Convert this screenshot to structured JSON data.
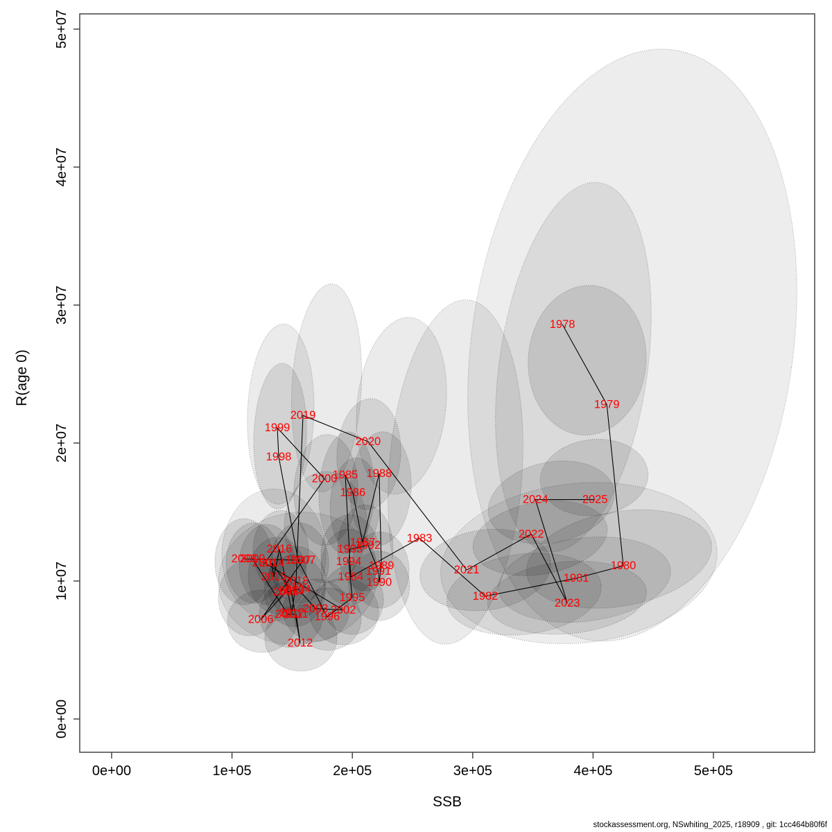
{
  "figure": {
    "background": "#ffffff"
  },
  "caption": {
    "text": "stockassessment.org, NSwhiting_2025, r18909 , git: 1cc464b80f6f",
    "color": "#000000"
  },
  "chart_data": {
    "type": "scatter",
    "title": "",
    "xlabel": "SSB",
    "ylabel": "R(age 0)",
    "xlim": [
      0,
      585000
    ],
    "ylim": [
      0,
      52000000
    ],
    "grid": false,
    "legend": "none",
    "label_color": "#ff0000",
    "line_color": "#000000",
    "axis_color": "#444444",
    "ellipse_stroke": "rgba(0,0,0,0.35)",
    "x_ticks": [
      {
        "value": 0,
        "label": "0e+00"
      },
      {
        "value": 100000,
        "label": "1e+05"
      },
      {
        "value": 200000,
        "label": "2e+05"
      },
      {
        "value": 300000,
        "label": "3e+05"
      },
      {
        "value": 400000,
        "label": "4e+05"
      },
      {
        "value": 500000,
        "label": "5e+05"
      }
    ],
    "y_ticks": [
      {
        "value": 0,
        "label": "0e+00"
      },
      {
        "value": 10000000,
        "label": "1e+07"
      },
      {
        "value": 20000000,
        "label": "2e+07"
      },
      {
        "value": 30000000,
        "label": "3e+07"
      },
      {
        "value": 40000000,
        "label": "4e+07"
      },
      {
        "value": 50000000,
        "label": "5e+07"
      }
    ],
    "series": [
      {
        "year": "1978",
        "ssb": 374500,
        "recruitment": 28600000
      },
      {
        "year": "1979",
        "ssb": 411400,
        "recruitment": 22800000
      },
      {
        "year": "1980",
        "ssb": 425100,
        "recruitment": 11100000
      },
      {
        "year": "1981",
        "ssb": 386000,
        "recruitment": 10200000
      },
      {
        "year": "1982",
        "ssb": 310500,
        "recruitment": 8900000
      },
      {
        "year": "1983",
        "ssb": 255800,
        "recruitment": 13100000
      },
      {
        "year": "1984",
        "ssb": 198700,
        "recruitment": 10300000
      },
      {
        "year": "1985",
        "ssb": 194100,
        "recruitment": 17700000
      },
      {
        "year": "1986",
        "ssb": 200400,
        "recruitment": 16400000
      },
      {
        "year": "1987",
        "ssb": 208500,
        "recruitment": 12800000
      },
      {
        "year": "1988",
        "ssb": 222300,
        "recruitment": 17800000
      },
      {
        "year": "1989",
        "ssb": 224100,
        "recruitment": 11100000
      },
      {
        "year": "1990",
        "ssb": 222300,
        "recruitment": 9900000
      },
      {
        "year": "1991",
        "ssb": 221700,
        "recruitment": 10700000
      },
      {
        "year": "1992",
        "ssb": 213100,
        "recruitment": 12600000
      },
      {
        "year": "1993",
        "ssb": 198100,
        "recruitment": 12300000
      },
      {
        "year": "1994",
        "ssb": 197000,
        "recruitment": 11400000
      },
      {
        "year": "1995",
        "ssb": 199900,
        "recruitment": 8800000
      },
      {
        "year": "1996",
        "ssb": 179100,
        "recruitment": 7400000
      },
      {
        "year": "1997",
        "ssb": 155000,
        "recruitment": 11500000
      },
      {
        "year": "1998",
        "ssb": 138800,
        "recruitment": 19000000
      },
      {
        "year": "1999",
        "ssb": 137700,
        "recruitment": 21100000
      },
      {
        "year": "2000",
        "ssb": 176900,
        "recruitment": 17400000
      },
      {
        "year": "2001",
        "ssb": 127300,
        "recruitment": 11300000
      },
      {
        "year": "2002",
        "ssb": 192400,
        "recruitment": 7900000
      },
      {
        "year": "2003",
        "ssb": 169400,
        "recruitment": 8000000
      },
      {
        "year": "2004",
        "ssb": 155000,
        "recruitment": 9400000
      },
      {
        "year": "2005",
        "ssb": 144600,
        "recruitment": 9200000
      },
      {
        "year": "2006",
        "ssb": 123900,
        "recruitment": 7200000
      },
      {
        "year": "2007",
        "ssb": 159000,
        "recruitment": 11500000
      },
      {
        "year": "2008",
        "ssb": 110000,
        "recruitment": 11600000
      },
      {
        "year": "2009",
        "ssb": 117000,
        "recruitment": 11600000
      },
      {
        "year": "2010",
        "ssb": 146300,
        "recruitment": 7600000
      },
      {
        "year": "2011",
        "ssb": 153200,
        "recruitment": 7600000
      },
      {
        "year": "2012",
        "ssb": 156700,
        "recruitment": 5500000
      },
      {
        "year": "2013",
        "ssb": 149200,
        "recruitment": 9300000
      },
      {
        "year": "2014",
        "ssb": 133100,
        "recruitment": 11300000
      },
      {
        "year": "2015",
        "ssb": 134800,
        "recruitment": 10300000
      },
      {
        "year": "2016",
        "ssb": 139400,
        "recruitment": 12300000
      },
      {
        "year": "2017",
        "ssb": 149800,
        "recruitment": 7700000
      },
      {
        "year": "2018",
        "ssb": 153200,
        "recruitment": 10000000
      },
      {
        "year": "2019",
        "ssb": 159000,
        "recruitment": 22000000
      },
      {
        "year": "2020",
        "ssb": 213100,
        "recruitment": 20100000
      },
      {
        "year": "2021",
        "ssb": 295000,
        "recruitment": 10800000
      },
      {
        "year": "2022",
        "ssb": 348600,
        "recruitment": 13400000
      },
      {
        "year": "2023",
        "ssb": 378600,
        "recruitment": 8400000
      },
      {
        "year": "2024",
        "ssb": 352100,
        "recruitment": 15900000
      },
      {
        "year": "2025",
        "ssb": 401600,
        "recruitment": 15900000
      }
    ],
    "uncertainty_ellipses": [
      {
        "ssb": 432600,
        "r": 27100000,
        "ssb_radius": 133600,
        "r_radius": 21600000,
        "rot": 8,
        "alpha": 0.07
      },
      {
        "ssb": 383600,
        "r": 25500000,
        "ssb_radius": 61600,
        "r_radius": 13500000,
        "rot": 8,
        "alpha": 0.08
      },
      {
        "ssb": 395100,
        "r": 26000000,
        "ssb_radius": 49000,
        "r_radius": 5430000,
        "rot": 4,
        "alpha": 0.1
      },
      {
        "ssb": 400900,
        "r": 17500000,
        "ssb_radius": 44900,
        "r_radius": 2760000,
        "rot": -6,
        "alpha": 0.1
      },
      {
        "ssb": 388200,
        "r": 11300000,
        "ssb_radius": 115200,
        "r_radius": 5780000,
        "rot": -6,
        "alpha": 0.07
      },
      {
        "ssb": 421600,
        "r": 11600000,
        "ssb_radius": 77800,
        "r_radius": 3420000,
        "rot": -10,
        "alpha": 0.09
      },
      {
        "ssb": 392800,
        "r": 10100000,
        "ssb_radius": 72000,
        "r_radius": 3020000,
        "rot": -7,
        "alpha": 0.09
      },
      {
        "ssb": 378400,
        "r": 8790000,
        "ssb_radius": 66200,
        "r_radius": 2610000,
        "rot": -5,
        "alpha": 0.09
      },
      {
        "ssb": 342700,
        "r": 9050000,
        "ssb_radius": 64500,
        "r_radius": 2910000,
        "rot": -7,
        "alpha": 0.09
      },
      {
        "ssb": 356000,
        "r": 13100000,
        "ssb_radius": 56400,
        "r_radius": 2610000,
        "rot": -10,
        "alpha": 0.1
      },
      {
        "ssb": 365200,
        "r": 15700000,
        "ssb_radius": 53000,
        "r_radius": 2910000,
        "rot": -12,
        "alpha": 0.1
      },
      {
        "ssb": 310500,
        "r": 10800000,
        "ssb_radius": 54700,
        "r_radius": 2910000,
        "rot": -8,
        "alpha": 0.1
      },
      {
        "ssb": 285700,
        "r": 17900000,
        "ssb_radius": 55300,
        "r_radius": 12500000,
        "rot": 4,
        "alpha": 0.08
      },
      {
        "ssb": 178600,
        "r": 24000000,
        "ssb_radius": 28800,
        "r_radius": 7540000,
        "rot": 3,
        "alpha": 0.08
      },
      {
        "ssb": 240800,
        "r": 22700000,
        "ssb_radius": 36900,
        "r_radius": 6430000,
        "rot": 6,
        "alpha": 0.08
      },
      {
        "ssb": 213700,
        "r": 19200000,
        "ssb_radius": 26500,
        "r_radius": 4020000,
        "rot": 3,
        "alpha": 0.1
      },
      {
        "ssb": 140500,
        "r": 22100000,
        "ssb_radius": 27600,
        "r_radius": 6530000,
        "rot": 2,
        "alpha": 0.08
      },
      {
        "ssb": 140000,
        "r": 20500000,
        "ssb_radius": 21900,
        "r_radius": 5280000,
        "rot": 2,
        "alpha": 0.1
      },
      {
        "ssb": 195300,
        "r": 16400000,
        "ssb_radius": 23000,
        "r_radius": 4420000,
        "rot": 2,
        "alpha": 0.11
      },
      {
        "ssb": 223500,
        "r": 16700000,
        "ssb_radius": 25300,
        "r_radius": 4120000,
        "rot": 3,
        "alpha": 0.11
      },
      {
        "ssb": 178000,
        "r": 16600000,
        "ssb_radius": 26500,
        "r_radius": 4020000,
        "rot": 2,
        "alpha": 0.1
      },
      {
        "ssb": 202200,
        "r": 15500000,
        "ssb_radius": 20700,
        "r_radius": 3420000,
        "rot": 2,
        "alpha": 0.11
      },
      {
        "ssb": 210800,
        "r": 12400000,
        "ssb_radius": 23000,
        "r_radius": 3120000,
        "rot": 0,
        "alpha": 0.11
      },
      {
        "ssb": 222900,
        "r": 10800000,
        "ssb_radius": 24200,
        "r_radius": 2760000,
        "rot": 0,
        "alpha": 0.11
      },
      {
        "ssb": 222300,
        "r": 9650000,
        "ssb_radius": 25300,
        "r_radius": 2510000,
        "rot": 0,
        "alpha": 0.11
      },
      {
        "ssb": 198100,
        "r": 11900000,
        "ssb_radius": 24200,
        "r_radius": 2910000,
        "rot": 0,
        "alpha": 0.11
      },
      {
        "ssb": 197000,
        "r": 11000000,
        "ssb_radius": 23000,
        "r_radius": 2760000,
        "rot": 0,
        "alpha": 0.11
      },
      {
        "ssb": 199900,
        "r": 8640000,
        "ssb_radius": 25900,
        "r_radius": 2510000,
        "rot": 0,
        "alpha": 0.11
      },
      {
        "ssb": 179700,
        "r": 7240000,
        "ssb_radius": 27600,
        "r_radius": 2260000,
        "rot": 0,
        "alpha": 0.11
      },
      {
        "ssb": 193000,
        "r": 7790000,
        "ssb_radius": 28800,
        "r_radius": 2410000,
        "rot": 0,
        "alpha": 0.11
      },
      {
        "ssb": 169900,
        "r": 7890000,
        "ssb_radius": 27600,
        "r_radius": 2260000,
        "rot": 0,
        "alpha": 0.11
      },
      {
        "ssb": 154900,
        "r": 10200000,
        "ssb_radius": 66200,
        "r_radius": 4770000,
        "rot": -8,
        "alpha": 0.07
      },
      {
        "ssb": 134800,
        "r": 11900000,
        "ssb_radius": 43200,
        "r_radius": 4770000,
        "rot": 0,
        "alpha": 0.08
      },
      {
        "ssb": 110000,
        "r": 11400000,
        "ssb_radius": 24200,
        "r_radius": 3120000,
        "rot": 0,
        "alpha": 0.11
      },
      {
        "ssb": 118100,
        "r": 11300000,
        "ssb_radius": 23000,
        "r_radius": 2910000,
        "rot": 0,
        "alpha": 0.11
      },
      {
        "ssb": 129000,
        "r": 11200000,
        "ssb_radius": 23000,
        "r_radius": 2910000,
        "rot": 0,
        "alpha": 0.11
      },
      {
        "ssb": 137700,
        "r": 10400000,
        "ssb_radius": 24200,
        "r_radius": 2760000,
        "rot": 0,
        "alpha": 0.11
      },
      {
        "ssb": 140500,
        "r": 12200000,
        "ssb_radius": 23000,
        "r_radius": 2910000,
        "rot": 0,
        "alpha": 0.11
      },
      {
        "ssb": 156100,
        "r": 11300000,
        "ssb_radius": 24200,
        "r_radius": 2910000,
        "rot": 0,
        "alpha": 0.11
      },
      {
        "ssb": 152100,
        "r": 9300000,
        "ssb_radius": 25300,
        "r_radius": 2610000,
        "rot": 0,
        "alpha": 0.11
      },
      {
        "ssb": 153800,
        "r": 9900000,
        "ssb_radius": 24200,
        "r_radius": 2610000,
        "rot": 0,
        "alpha": 0.11
      },
      {
        "ssb": 149200,
        "r": 7590000,
        "ssb_radius": 26500,
        "r_radius": 2410000,
        "rot": 0,
        "alpha": 0.11
      },
      {
        "ssb": 125000,
        "r": 7090000,
        "ssb_radius": 28800,
        "r_radius": 2260000,
        "rot": 0,
        "alpha": 0.11
      },
      {
        "ssb": 157200,
        "r": 5880000,
        "ssb_radius": 30000,
        "r_radius": 2410000,
        "rot": 0,
        "alpha": 0.11
      },
      {
        "ssb": 114600,
        "r": 8790000,
        "ssb_radius": 25900,
        "r_radius": 2760000,
        "rot": 0,
        "alpha": 0.1
      },
      {
        "ssb": 178000,
        "r": 13900000,
        "ssb_radius": 34600,
        "r_radius": 4020000,
        "rot": 0,
        "alpha": 0.09
      }
    ]
  }
}
